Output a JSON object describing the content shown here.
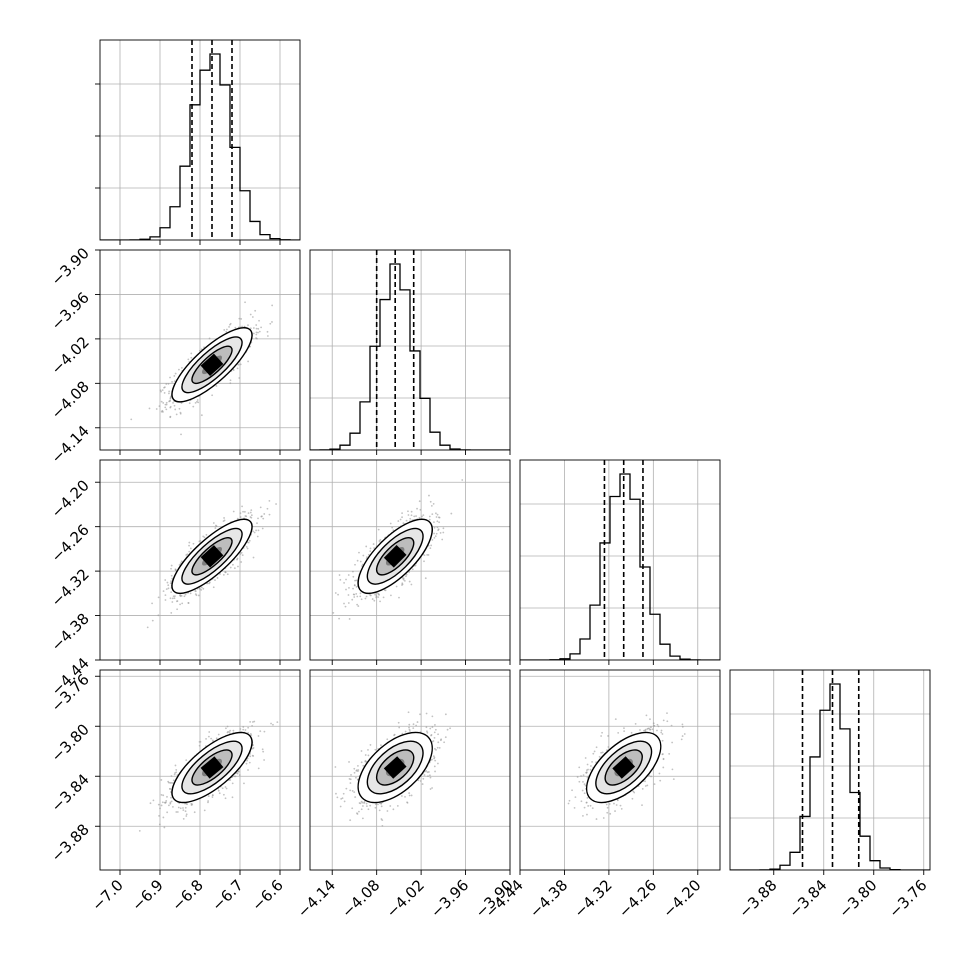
{
  "chart_data": {
    "type": "corner",
    "parameters": 4,
    "grid": true,
    "style": {
      "contour_color": "#000000",
      "hist_color": "#000000",
      "quantile_line_color": "#000000",
      "scatter_color": "#9a9a9a",
      "grid_color": "#b0b0b0"
    },
    "axes": [
      {
        "range": [
          -7.05,
          -6.55
        ],
        "ticks": [
          -7.0,
          -6.9,
          -6.8,
          -6.7,
          -6.6
        ],
        "tick_labels": [
          "−7.0",
          "−6.9",
          "−6.8",
          "−6.7",
          "−6.6"
        ],
        "mean": -6.77,
        "std": 0.05
      },
      {
        "range": [
          -4.17,
          -3.9
        ],
        "ticks": [
          -4.14,
          -4.08,
          -4.02,
          -3.96,
          -3.9
        ],
        "tick_labels": [
          "−4.14",
          "−4.08",
          "−4.02",
          "−3.96",
          "−3.90"
        ],
        "mean": -4.055,
        "std": 0.025
      },
      {
        "range": [
          -4.44,
          -4.17
        ],
        "ticks": [
          -4.44,
          -4.38,
          -4.32,
          -4.26,
          -4.2
        ],
        "tick_labels": [
          "−4.44",
          "−4.38",
          "−4.32",
          "−4.26",
          "−4.20"
        ],
        "mean": -4.3,
        "std": 0.025
      },
      {
        "range": [
          -3.915,
          -3.755
        ],
        "ticks": [
          -3.88,
          -3.84,
          -3.8,
          -3.76
        ],
        "tick_labels": [
          "−3.88",
          "−3.84",
          "−3.80",
          "−3.76"
        ],
        "mean": -3.833,
        "std": 0.014
      }
    ],
    "quantiles": [
      [
        -6.82,
        -6.77,
        -6.72
      ],
      [
        -4.08,
        -4.055,
        -4.03
      ],
      [
        -4.326,
        -4.3,
        -4.274
      ],
      [
        -3.857,
        -3.833,
        -3.812
      ]
    ],
    "correlations": {
      "1-0": 0.8,
      "2-0": 0.8,
      "2-1": 0.72,
      "3-0": 0.72,
      "3-1": 0.55,
      "3-2": 0.6
    }
  }
}
